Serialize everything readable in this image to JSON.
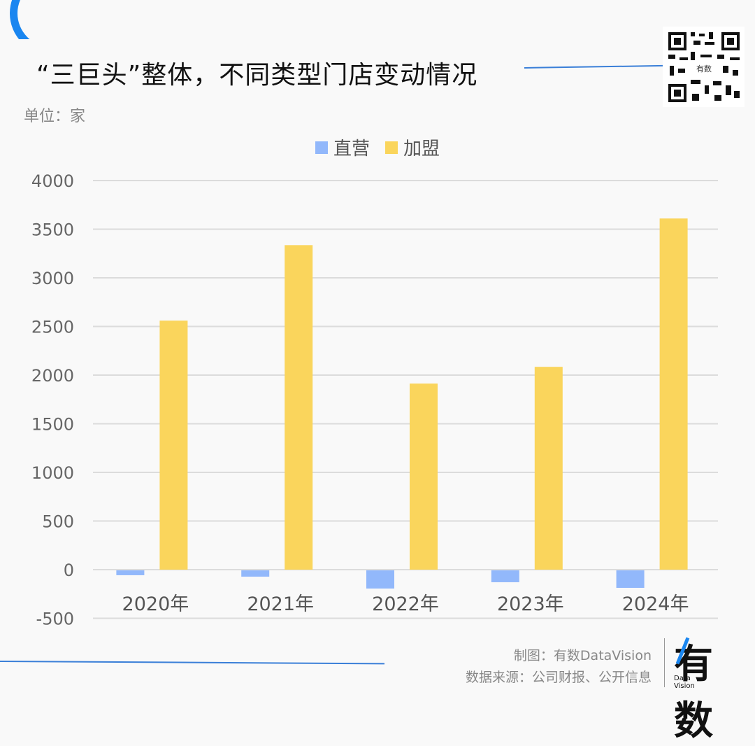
{
  "header": {
    "title": "“三巨头”整体，不同类型门店变动情况",
    "unit": "单位：家",
    "qr_label": "有数"
  },
  "legend": [
    {
      "label": "直营",
      "color": "#92b8fb"
    },
    {
      "label": "加盟",
      "color": "#fad55c"
    }
  ],
  "footer": {
    "credit": "制图：有数DataVision",
    "source": "数据来源：公司财报、公开信息",
    "logo_main": "有数",
    "logo_sub_1": "Data",
    "logo_sub_2": "Vision"
  },
  "chart_data": {
    "type": "bar",
    "title": "“三巨头”整体，不同类型门店变动情况",
    "xlabel": "",
    "ylabel": "单位：家",
    "categories": [
      "2020年",
      "2021年",
      "2022年",
      "2023年",
      "2024年"
    ],
    "series": [
      {
        "name": "直营",
        "color": "#92b8fb",
        "values": [
          -50,
          -65,
          -187,
          -122,
          -180
        ]
      },
      {
        "name": "加盟",
        "color": "#fad55c",
        "values": [
          2560,
          3336,
          1913,
          2085,
          3610
        ]
      }
    ],
    "ylim": [
      -500,
      4000
    ],
    "yticks": [
      -500,
      0,
      500,
      1000,
      1500,
      2000,
      2500,
      3000,
      3500,
      4000
    ],
    "grid": true,
    "legend_position": "top-center"
  }
}
